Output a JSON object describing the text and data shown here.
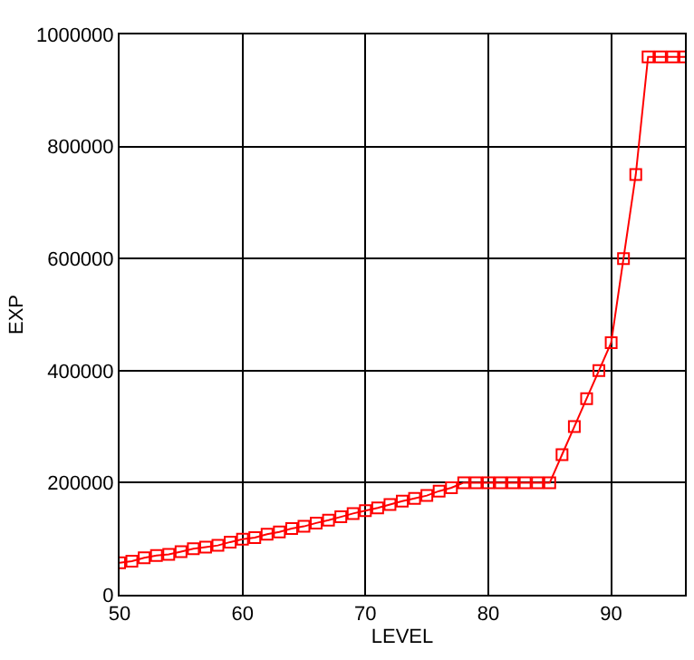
{
  "chart_data": {
    "type": "line",
    "xlabel": "LEVEL",
    "ylabel": "EXP",
    "x": [
      50,
      51,
      52,
      53,
      54,
      55,
      56,
      57,
      58,
      59,
      60,
      61,
      62,
      63,
      64,
      65,
      66,
      67,
      68,
      69,
      70,
      71,
      72,
      73,
      74,
      75,
      76,
      77,
      78,
      79,
      80,
      81,
      82,
      83,
      84,
      85,
      86,
      87,
      88,
      89,
      90,
      91,
      92,
      93,
      94,
      95,
      96
    ],
    "series": [
      {
        "color": "#ff0000",
        "values": [
          57000,
          60000,
          66000,
          70000,
          72000,
          77000,
          82000,
          85000,
          88000,
          94000,
          99000,
          102000,
          108000,
          112000,
          118000,
          122000,
          128000,
          133000,
          139000,
          145000,
          150000,
          155000,
          161000,
          167000,
          172000,
          177000,
          185000,
          191000,
          200000,
          200000,
          200000,
          200000,
          200000,
          200000,
          200000,
          200000,
          250000,
          300000,
          350000,
          400000,
          450000,
          600000,
          750000,
          960000,
          960000,
          960000,
          960000
        ]
      }
    ],
    "xlim": [
      50,
      96
    ],
    "xticks": [
      50,
      60,
      70,
      80,
      90
    ],
    "ylim": [
      0,
      1000000
    ],
    "yticks": [
      0,
      200000,
      400000,
      600000,
      800000,
      1000000
    ],
    "grid": true,
    "marker": "square",
    "line_style": "solid"
  }
}
